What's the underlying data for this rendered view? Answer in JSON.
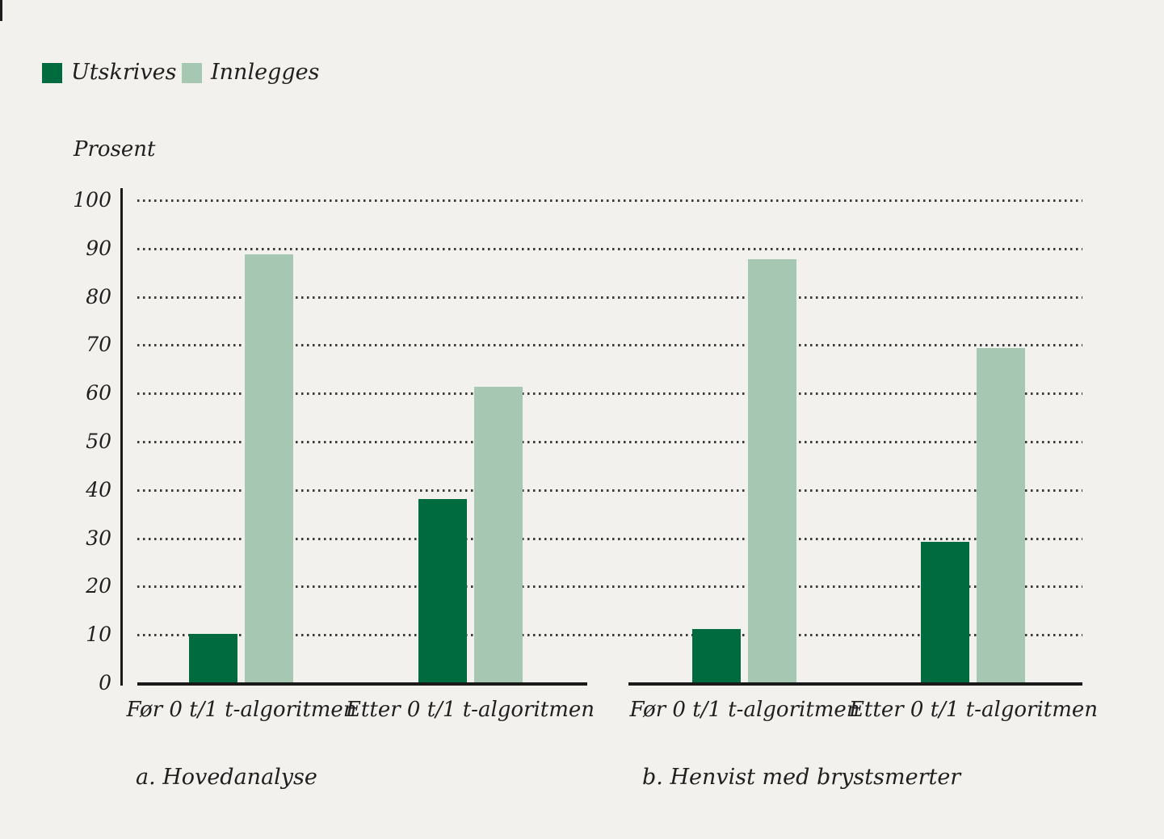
{
  "page": {
    "background_color": "#F2F1ED",
    "text_color": "#1F1F1F"
  },
  "chart_data": {
    "type": "bar",
    "ylabel": "Prosent",
    "ylim": [
      0,
      100
    ],
    "yticks": [
      100,
      90,
      80,
      70,
      60,
      50,
      40,
      30,
      20,
      10,
      0
    ],
    "grid": "horizontal-dotted",
    "legend_position": "top-left",
    "legend": [
      {
        "name": "Utskrives",
        "color": "#006B3E"
      },
      {
        "name": "Innlegges",
        "color": "#A6C8B3"
      }
    ],
    "panels": [
      {
        "caption": "a. Hovedanalyse",
        "categories": [
          "Før 0 t/1 t-algoritmen",
          "Etter 0 t/1 t-algoritmen"
        ],
        "series": [
          {
            "name": "Utskrives",
            "values": [
              10.4,
              38.3
            ]
          },
          {
            "name": "Innlegges",
            "values": [
              89.0,
              61.5
            ]
          }
        ]
      },
      {
        "caption": "b. Henvist med brystsmerter",
        "categories": [
          "Før 0 t/1 t-algoritmen",
          "Etter 0 t/1 t-algoritmen"
        ],
        "series": [
          {
            "name": "Utskrives",
            "values": [
              11.4,
              29.5
            ]
          },
          {
            "name": "Innlegges",
            "values": [
              88.0,
              69.5
            ]
          }
        ]
      }
    ]
  }
}
